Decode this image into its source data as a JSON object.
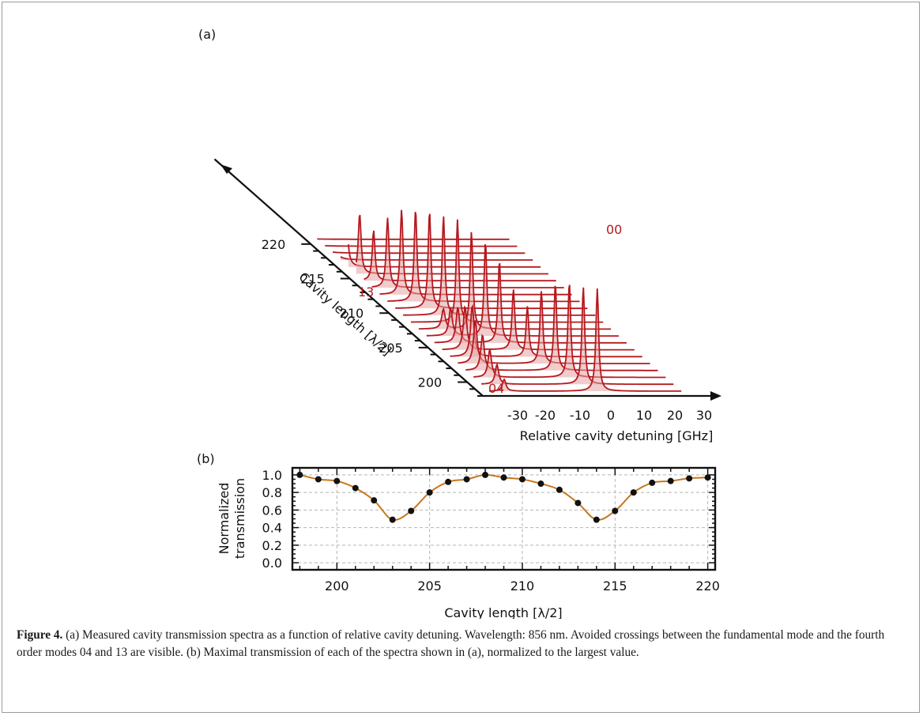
{
  "figure": {
    "panel_a_label": "(a)",
    "panel_b_label": "(b)",
    "caption_label": "Figure 4.",
    "caption_text": " (a) Measured cavity transmission spectra as a function of relative cavity detuning. Wavelength: 856 nm. Avoided crossings between the fundamental mode and the fourth order modes 04 and 13 are visible. (b) Maximal transmission of each of the spectra shown in (a), normalized to the largest value."
  },
  "chart_data": [
    {
      "panel": "(a)",
      "type": "line",
      "title": "",
      "xlabel": "Relative cavity detuning [GHz]",
      "ylabel": "Cavity length [λ/2]",
      "x_ticks": [
        -30,
        -20,
        -10,
        0,
        10,
        20,
        30
      ],
      "y_ticks": [
        200,
        205,
        210,
        215,
        220
      ],
      "y_range": [
        198,
        220
      ],
      "annotations": [
        "00",
        "13",
        "04"
      ],
      "colors": {
        "line": "#b5191e",
        "fill": "#e5a3a3"
      },
      "grid": false,
      "legend": "none"
    },
    {
      "panel": "(b)",
      "type": "line",
      "title": "",
      "xlabel": "Cavity  length [λ/2]",
      "ylabel": "Normalized transmission",
      "ylabel_lines": [
        "Normalized",
        "transmission"
      ],
      "x_ticks": [
        200,
        205,
        210,
        215,
        220
      ],
      "y_ticks": [
        "0.0",
        "0.2",
        "0.4",
        "0.6",
        "0.8",
        "1.0"
      ],
      "xlim": [
        197.6,
        220.4
      ],
      "ylim": [
        -0.08,
        1.08
      ],
      "grid": true,
      "legend": "none",
      "colors": {
        "line": "#c8771e",
        "marker": "#111111",
        "grid": "#b5b5b5"
      },
      "x": [
        198,
        199,
        200,
        201,
        202,
        203,
        204,
        205,
        206,
        207,
        208,
        209,
        210,
        211,
        212,
        213,
        214,
        215,
        216,
        217,
        218,
        219,
        220
      ],
      "y": [
        1.0,
        0.95,
        0.93,
        0.85,
        0.71,
        0.49,
        0.59,
        0.8,
        0.92,
        0.95,
        1.0,
        0.97,
        0.95,
        0.9,
        0.83,
        0.68,
        0.49,
        0.59,
        0.8,
        0.91,
        0.93,
        0.96,
        0.97
      ]
    }
  ]
}
